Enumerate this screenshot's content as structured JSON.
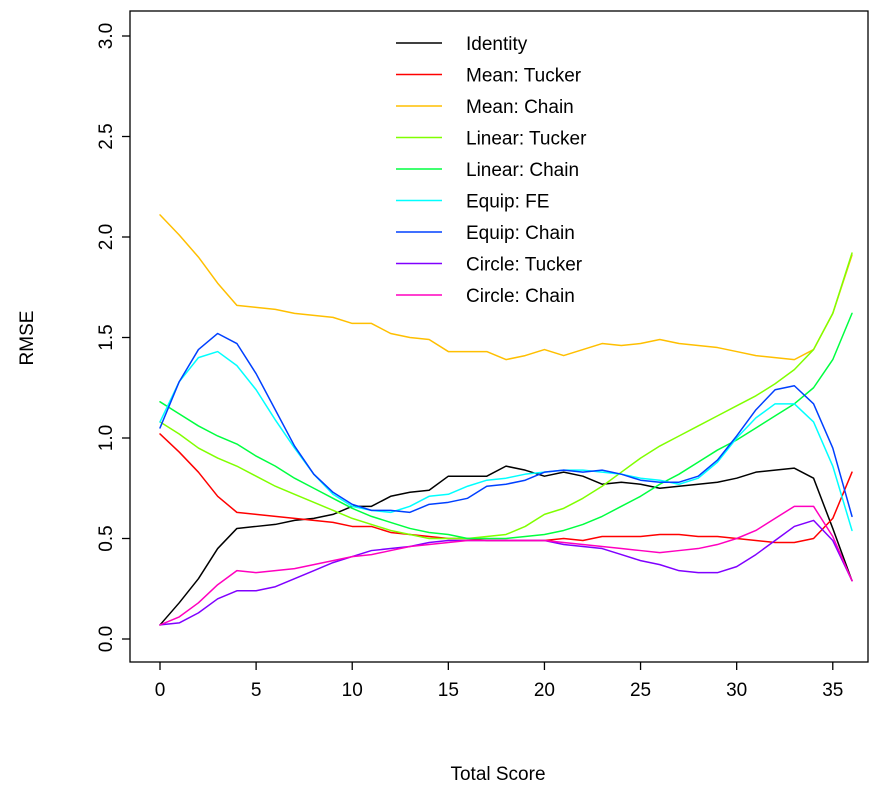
{
  "chart_data": {
    "type": "line",
    "title": "",
    "xlabel": "Total Score",
    "ylabel": "RMSE",
    "xlim": [
      0,
      36
    ],
    "ylim": [
      0,
      3
    ],
    "xticks": [
      0,
      5,
      10,
      15,
      20,
      25,
      30,
      35
    ],
    "yticks": [
      0.0,
      0.5,
      1.0,
      1.5,
      2.0,
      2.5,
      3.0
    ],
    "ytick_labels": [
      "0.0",
      "0.5",
      "1.0",
      "1.5",
      "2.0",
      "2.5",
      "3.0"
    ],
    "grid": false,
    "legend": "top-center",
    "x": [
      0,
      1,
      2,
      3,
      4,
      5,
      6,
      7,
      8,
      9,
      10,
      11,
      12,
      13,
      14,
      15,
      16,
      17,
      18,
      19,
      20,
      21,
      22,
      23,
      24,
      25,
      26,
      27,
      28,
      29,
      30,
      31,
      32,
      33,
      34,
      35,
      36
    ],
    "series": [
      {
        "name": "Identity",
        "color": "#000000",
        "values": [
          0.07,
          0.18,
          0.3,
          0.45,
          0.55,
          0.56,
          0.57,
          0.59,
          0.6,
          0.62,
          0.66,
          0.66,
          0.71,
          0.73,
          0.74,
          0.81,
          0.81,
          0.81,
          0.86,
          0.84,
          0.81,
          0.83,
          0.81,
          0.77,
          0.78,
          0.77,
          0.75,
          0.76,
          0.77,
          0.78,
          0.8,
          0.83,
          0.84,
          0.85,
          0.8,
          0.55,
          0.29
        ]
      },
      {
        "name": "Mean: Tucker",
        "color": "#ff0000",
        "values": [
          1.02,
          0.93,
          0.83,
          0.71,
          0.63,
          0.62,
          0.61,
          0.6,
          0.59,
          0.58,
          0.56,
          0.56,
          0.53,
          0.52,
          0.51,
          0.5,
          0.5,
          0.49,
          0.49,
          0.49,
          0.49,
          0.5,
          0.49,
          0.51,
          0.51,
          0.51,
          0.52,
          0.52,
          0.51,
          0.51,
          0.5,
          0.49,
          0.48,
          0.48,
          0.5,
          0.6,
          0.83
        ]
      },
      {
        "name": "Mean: Chain",
        "color": "#ffbf00",
        "values": [
          2.11,
          2.01,
          1.9,
          1.77,
          1.66,
          1.65,
          1.64,
          1.62,
          1.61,
          1.6,
          1.57,
          1.57,
          1.52,
          1.5,
          1.49,
          1.43,
          1.43,
          1.43,
          1.39,
          1.41,
          1.44,
          1.41,
          1.44,
          1.47,
          1.46,
          1.47,
          1.49,
          1.47,
          1.46,
          1.45,
          1.43,
          1.41,
          1.4,
          1.39,
          1.44,
          1.62,
          1.91
        ]
      },
      {
        "name": "Linear: Tucker",
        "color": "#80ff00",
        "values": [
          1.08,
          1.02,
          0.95,
          0.9,
          0.86,
          0.81,
          0.76,
          0.72,
          0.68,
          0.64,
          0.6,
          0.57,
          0.54,
          0.52,
          0.5,
          0.5,
          0.5,
          0.51,
          0.52,
          0.56,
          0.62,
          0.65,
          0.7,
          0.76,
          0.83,
          0.9,
          0.96,
          1.01,
          1.06,
          1.11,
          1.16,
          1.21,
          1.27,
          1.34,
          1.44,
          1.62,
          1.92
        ]
      },
      {
        "name": "Linear: Chain",
        "color": "#00ff40",
        "values": [
          1.18,
          1.12,
          1.06,
          1.01,
          0.97,
          0.91,
          0.86,
          0.8,
          0.75,
          0.7,
          0.65,
          0.61,
          0.58,
          0.55,
          0.53,
          0.52,
          0.5,
          0.5,
          0.5,
          0.51,
          0.52,
          0.54,
          0.57,
          0.61,
          0.66,
          0.71,
          0.77,
          0.82,
          0.88,
          0.94,
          0.99,
          1.05,
          1.11,
          1.17,
          1.25,
          1.39,
          1.62
        ]
      },
      {
        "name": "Equip: FE",
        "color": "#00ffff",
        "values": [
          1.08,
          1.28,
          1.4,
          1.43,
          1.36,
          1.24,
          1.09,
          0.95,
          0.82,
          0.72,
          0.66,
          0.64,
          0.63,
          0.66,
          0.71,
          0.72,
          0.76,
          0.79,
          0.8,
          0.82,
          0.83,
          0.84,
          0.84,
          0.83,
          0.82,
          0.8,
          0.79,
          0.77,
          0.8,
          0.88,
          1.0,
          1.1,
          1.17,
          1.17,
          1.08,
          0.86,
          0.54
        ]
      },
      {
        "name": "Equip: Chain",
        "color": "#0040ff",
        "values": [
          1.05,
          1.28,
          1.44,
          1.52,
          1.47,
          1.32,
          1.14,
          0.96,
          0.82,
          0.73,
          0.67,
          0.64,
          0.64,
          0.63,
          0.67,
          0.68,
          0.7,
          0.76,
          0.77,
          0.79,
          0.83,
          0.84,
          0.83,
          0.84,
          0.82,
          0.79,
          0.78,
          0.78,
          0.81,
          0.89,
          1.01,
          1.14,
          1.24,
          1.26,
          1.17,
          0.95,
          0.61
        ]
      },
      {
        "name": "Circle: Tucker",
        "color": "#8000ff",
        "values": [
          0.07,
          0.08,
          0.13,
          0.2,
          0.24,
          0.24,
          0.26,
          0.3,
          0.34,
          0.38,
          0.41,
          0.44,
          0.45,
          0.46,
          0.48,
          0.49,
          0.49,
          0.49,
          0.49,
          0.49,
          0.49,
          0.47,
          0.46,
          0.45,
          0.42,
          0.39,
          0.37,
          0.34,
          0.33,
          0.33,
          0.36,
          0.42,
          0.49,
          0.56,
          0.59,
          0.49,
          0.29
        ]
      },
      {
        "name": "Circle: Chain",
        "color": "#ff00bf",
        "values": [
          0.07,
          0.11,
          0.18,
          0.27,
          0.34,
          0.33,
          0.34,
          0.35,
          0.37,
          0.39,
          0.41,
          0.42,
          0.44,
          0.46,
          0.47,
          0.48,
          0.49,
          0.49,
          0.49,
          0.49,
          0.49,
          0.48,
          0.47,
          0.46,
          0.45,
          0.44,
          0.43,
          0.44,
          0.45,
          0.47,
          0.5,
          0.54,
          0.6,
          0.66,
          0.66,
          0.51,
          0.29
        ]
      }
    ]
  }
}
